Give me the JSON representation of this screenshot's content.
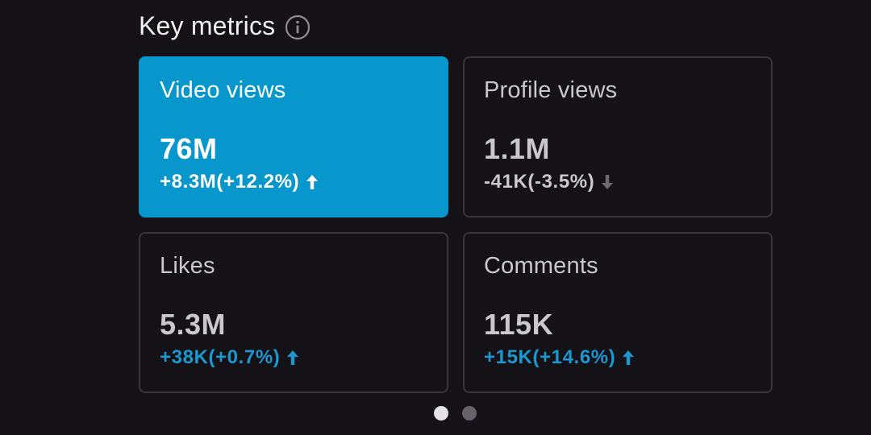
{
  "header": {
    "title": "Key metrics",
    "info_icon": "info-icon"
  },
  "colors": {
    "background": "#141117",
    "accent": "#0797cd",
    "positive": "#1b98cf",
    "card_border": "#37353b"
  },
  "metrics": [
    {
      "label": "Video views",
      "value": "76M",
      "change": "+8.3M(+12.2%)",
      "trend": "up",
      "selected": true
    },
    {
      "label": "Profile views",
      "value": "1.1M",
      "change": "-41K(-3.5%)",
      "trend": "down",
      "selected": false
    },
    {
      "label": "Likes",
      "value": "5.3M",
      "change": "+38K(+0.7%)",
      "trend": "up",
      "selected": false
    },
    {
      "label": "Comments",
      "value": "115K",
      "change": "+15K(+14.6%)",
      "trend": "up",
      "selected": false
    }
  ],
  "pagination": {
    "pages": 2,
    "current": 1
  }
}
